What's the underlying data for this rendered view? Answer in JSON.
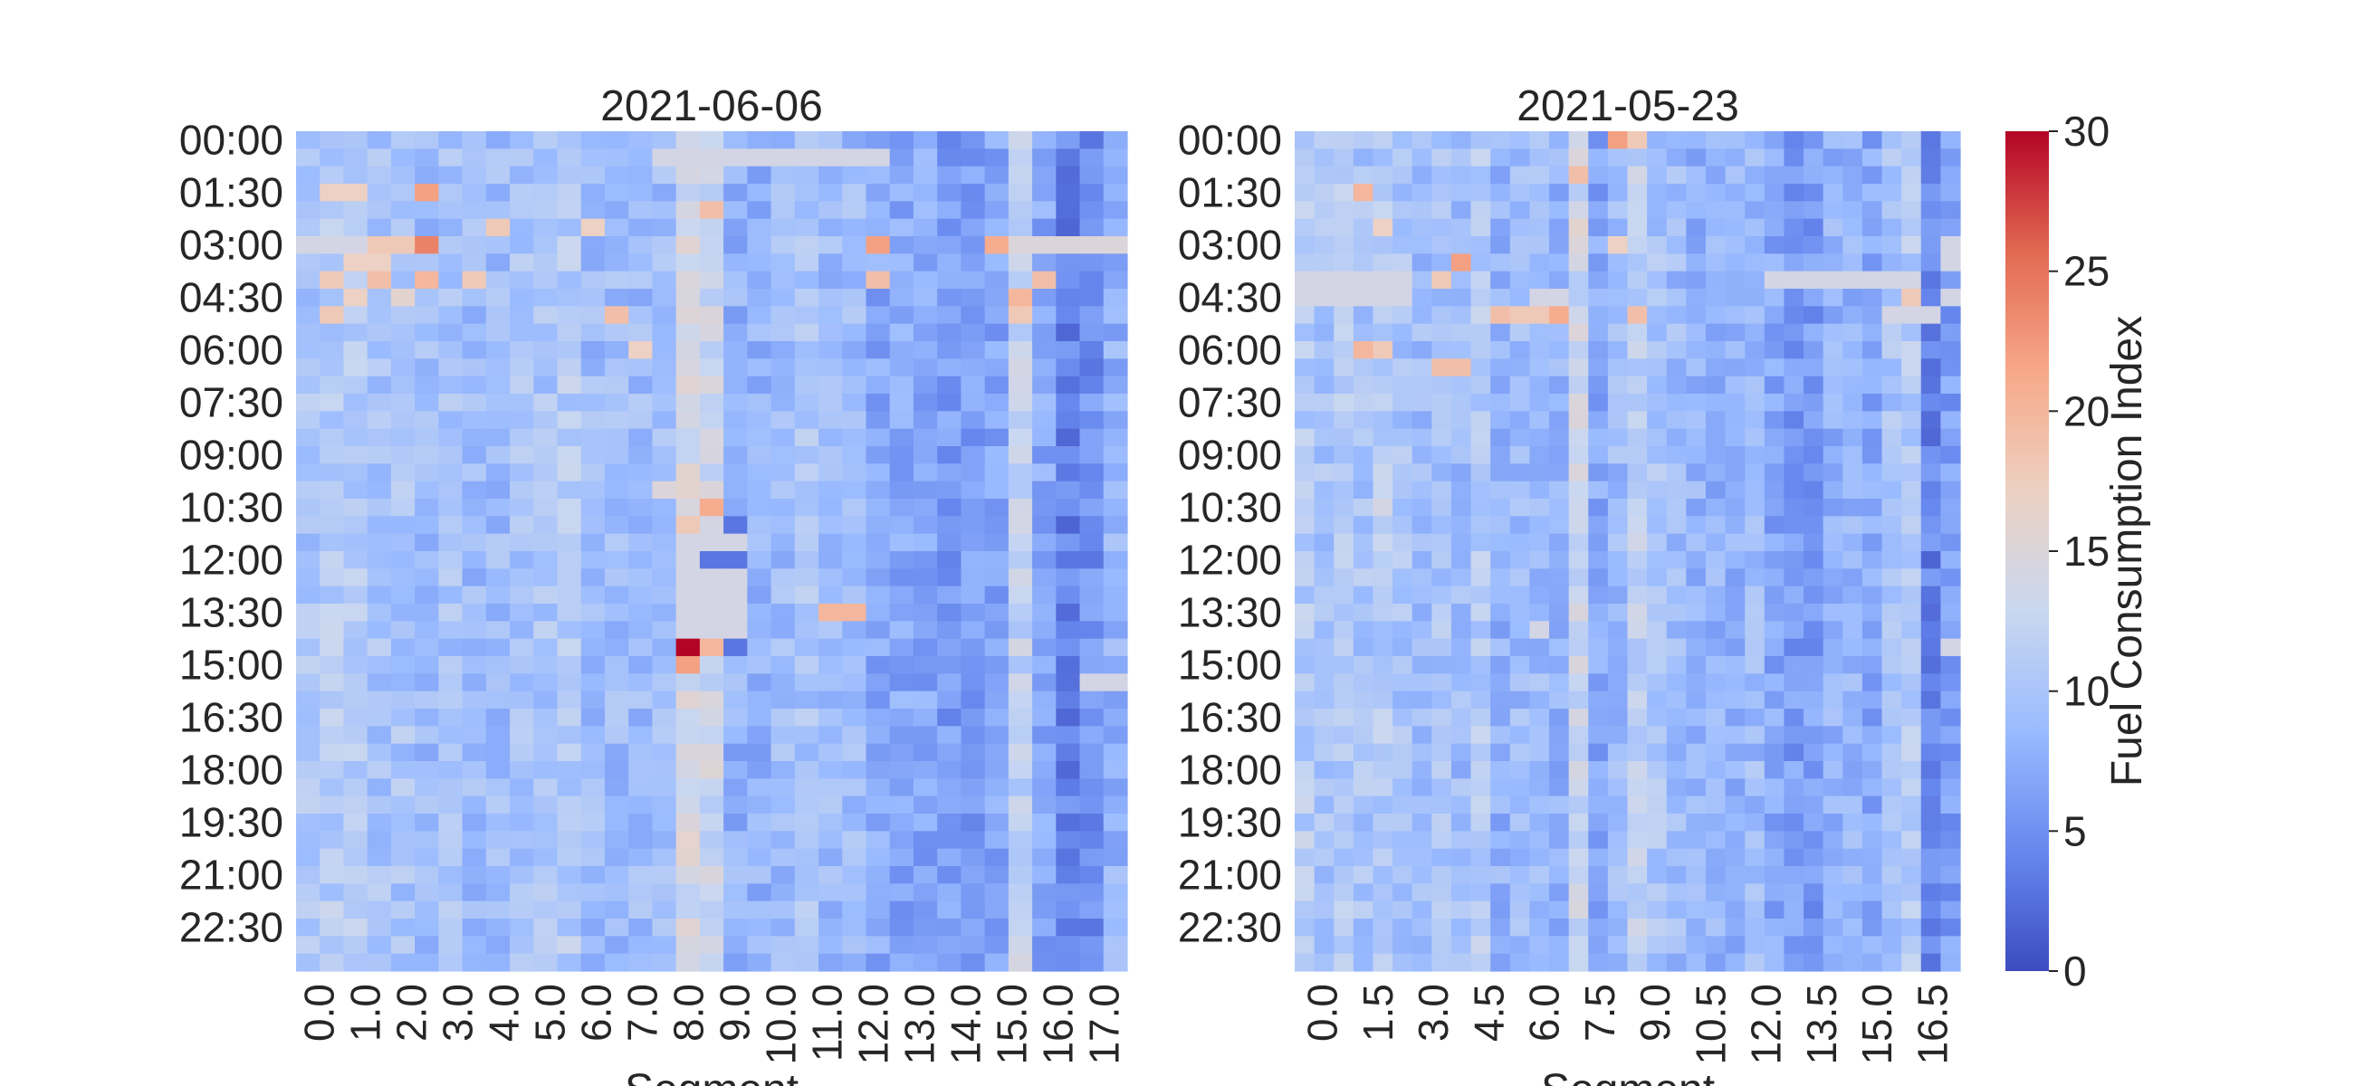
{
  "figure": {
    "colorbar_label": "Fuel Consumption Index",
    "colorbar_ticks": [
      "0",
      "5",
      "10",
      "15",
      "20",
      "25",
      "30"
    ],
    "colormap": [
      "#3b4cc0",
      "#6788ee",
      "#9abbff",
      "#c9d7f0",
      "#edd1c2",
      "#f7a889",
      "#e26952",
      "#b40426"
    ]
  },
  "chart_data": [
    {
      "type": "heatmap",
      "title": "2021-06-06",
      "xlabel": "Segment",
      "ylabel": "",
      "value_range": [
        0,
        30
      ],
      "y_tick_labels": [
        "00:00",
        "01:30",
        "03:00",
        "04:30",
        "06:00",
        "07:30",
        "09:00",
        "10:30",
        "12:00",
        "13:30",
        "15:00",
        "16:30",
        "18:00",
        "19:30",
        "21:00",
        "22:30"
      ],
      "x_tick_labels": [
        "0.0",
        "1.0",
        "2.0",
        "3.0",
        "4.0",
        "5.0",
        "6.0",
        "7.0",
        "8.0",
        "9.0",
        "10.0",
        "11.0",
        "12.0",
        "13.0",
        "14.0",
        "15.0",
        "16.0",
        "17.0"
      ],
      "segment_count": 35,
      "time_bin_count": 48,
      "segment_profile": [
        10,
        11,
        11,
        10,
        10,
        9,
        10,
        9,
        9,
        10,
        10,
        11,
        9,
        9,
        9,
        9,
        14,
        13,
        8,
        8,
        9,
        10,
        9,
        9,
        7,
        7,
        7,
        6,
        6,
        7,
        12,
        7,
        4,
        5,
        8
      ],
      "highlight_cells": [
        {
          "row": 1,
          "col": 15,
          "value": 14
        },
        {
          "row": 1,
          "col": 16,
          "value": 14
        },
        {
          "row": 1,
          "col": 17,
          "value": 14
        },
        {
          "row": 1,
          "col": 18,
          "value": 14
        },
        {
          "row": 1,
          "col": 19,
          "value": 14
        },
        {
          "row": 1,
          "col": 20,
          "value": 14
        },
        {
          "row": 1,
          "col": 21,
          "value": 14
        },
        {
          "row": 1,
          "col": 22,
          "value": 14
        },
        {
          "row": 1,
          "col": 23,
          "value": 14
        },
        {
          "row": 1,
          "col": 24,
          "value": 14
        },
        {
          "row": 3,
          "col": 5,
          "value": 22
        },
        {
          "row": 3,
          "col": 1,
          "value": 17
        },
        {
          "row": 3,
          "col": 2,
          "value": 17
        },
        {
          "row": 4,
          "col": 17,
          "value": 19
        },
        {
          "row": 5,
          "col": 8,
          "value": 18
        },
        {
          "row": 5,
          "col": 12,
          "value": 17
        },
        {
          "row": 6,
          "col": 0,
          "value": 14
        },
        {
          "row": 6,
          "col": 1,
          "value": 14
        },
        {
          "row": 6,
          "col": 2,
          "value": 14
        },
        {
          "row": 6,
          "col": 3,
          "value": 18
        },
        {
          "row": 6,
          "col": 4,
          "value": 18
        },
        {
          "row": 6,
          "col": 5,
          "value": 24
        },
        {
          "row": 6,
          "col": 24,
          "value": 22
        },
        {
          "row": 6,
          "col": 29,
          "value": 21
        },
        {
          "row": 6,
          "col": 30,
          "value": 15
        },
        {
          "row": 6,
          "col": 31,
          "value": 15
        },
        {
          "row": 6,
          "col": 32,
          "value": 15
        },
        {
          "row": 6,
          "col": 33,
          "value": 15
        },
        {
          "row": 6,
          "col": 34,
          "value": 15
        },
        {
          "row": 7,
          "col": 2,
          "value": 17
        },
        {
          "row": 7,
          "col": 3,
          "value": 17
        },
        {
          "row": 8,
          "col": 1,
          "value": 18
        },
        {
          "row": 8,
          "col": 3,
          "value": 19
        },
        {
          "row": 8,
          "col": 5,
          "value": 20
        },
        {
          "row": 8,
          "col": 7,
          "value": 18
        },
        {
          "row": 8,
          "col": 24,
          "value": 19
        },
        {
          "row": 8,
          "col": 31,
          "value": 19
        },
        {
          "row": 9,
          "col": 2,
          "value": 17
        },
        {
          "row": 9,
          "col": 4,
          "value": 16
        },
        {
          "row": 9,
          "col": 30,
          "value": 20
        },
        {
          "row": 10,
          "col": 1,
          "value": 18
        },
        {
          "row": 10,
          "col": 13,
          "value": 19
        },
        {
          "row": 10,
          "col": 30,
          "value": 18
        },
        {
          "row": 12,
          "col": 14,
          "value": 17
        },
        {
          "row": 20,
          "col": 15,
          "value": 15
        },
        {
          "row": 20,
          "col": 16,
          "value": 16
        },
        {
          "row": 21,
          "col": 17,
          "value": 21
        },
        {
          "row": 22,
          "col": 16,
          "value": 18
        },
        {
          "row": 22,
          "col": 18,
          "value": 3
        },
        {
          "row": 23,
          "col": 16,
          "value": 14
        },
        {
          "row": 23,
          "col": 17,
          "value": 14
        },
        {
          "row": 23,
          "col": 18,
          "value": 14
        },
        {
          "row": 24,
          "col": 16,
          "value": 14
        },
        {
          "row": 24,
          "col": 17,
          "value": 3
        },
        {
          "row": 24,
          "col": 18,
          "value": 3
        },
        {
          "row": 25,
          "col": 16,
          "value": 14
        },
        {
          "row": 25,
          "col": 17,
          "value": 14
        },
        {
          "row": 25,
          "col": 18,
          "value": 14
        },
        {
          "row": 26,
          "col": 16,
          "value": 14
        },
        {
          "row": 26,
          "col": 17,
          "value": 14
        },
        {
          "row": 26,
          "col": 18,
          "value": 14
        },
        {
          "row": 27,
          "col": 16,
          "value": 14
        },
        {
          "row": 27,
          "col": 17,
          "value": 14
        },
        {
          "row": 27,
          "col": 18,
          "value": 14
        },
        {
          "row": 28,
          "col": 16,
          "value": 14
        },
        {
          "row": 28,
          "col": 17,
          "value": 14
        },
        {
          "row": 28,
          "col": 18,
          "value": 14
        },
        {
          "row": 27,
          "col": 22,
          "value": 20
        },
        {
          "row": 27,
          "col": 23,
          "value": 20
        },
        {
          "row": 29,
          "col": 16,
          "value": 30
        },
        {
          "row": 29,
          "col": 17,
          "value": 20
        },
        {
          "row": 29,
          "col": 18,
          "value": 3
        },
        {
          "row": 30,
          "col": 16,
          "value": 22
        },
        {
          "row": 31,
          "col": 33,
          "value": 14
        },
        {
          "row": 31,
          "col": 34,
          "value": 14
        }
      ]
    },
    {
      "type": "heatmap",
      "title": "2021-05-23",
      "xlabel": "Segment",
      "ylabel": "",
      "value_range": [
        0,
        30
      ],
      "y_tick_labels": [
        "00:00",
        "01:30",
        "03:00",
        "04:30",
        "06:00",
        "07:30",
        "09:00",
        "10:30",
        "12:00",
        "13:30",
        "15:00",
        "16:30",
        "18:00",
        "19:30",
        "21:00",
        "22:30"
      ],
      "x_tick_labels": [
        "0.0",
        "1.5",
        "3.0",
        "4.5",
        "6.0",
        "7.5",
        "9.0",
        "10.5",
        "12.0",
        "13.5",
        "15.0",
        "16.5"
      ],
      "segment_count": 34,
      "time_bin_count": 48,
      "segment_profile": [
        11,
        10,
        11,
        10,
        11,
        10,
        9,
        10,
        9,
        11,
        8,
        9,
        9,
        8,
        13,
        7,
        9,
        12,
        10,
        9,
        8,
        8,
        8,
        9,
        7,
        6,
        6,
        8,
        8,
        7,
        10,
        11,
        4,
        6
      ],
      "highlight_cells": [
        {
          "row": 0,
          "col": 16,
          "value": 22
        },
        {
          "row": 0,
          "col": 17,
          "value": 18
        },
        {
          "row": 2,
          "col": 14,
          "value": 19
        },
        {
          "row": 3,
          "col": 3,
          "value": 20
        },
        {
          "row": 5,
          "col": 4,
          "value": 17
        },
        {
          "row": 5,
          "col": 14,
          "value": 16
        },
        {
          "row": 6,
          "col": 16,
          "value": 17
        },
        {
          "row": 7,
          "col": 8,
          "value": 22
        },
        {
          "row": 6,
          "col": 33,
          "value": 14
        },
        {
          "row": 7,
          "col": 33,
          "value": 14
        },
        {
          "row": 8,
          "col": 0,
          "value": 14
        },
        {
          "row": 8,
          "col": 1,
          "value": 14
        },
        {
          "row": 8,
          "col": 2,
          "value": 14
        },
        {
          "row": 8,
          "col": 3,
          "value": 14
        },
        {
          "row": 8,
          "col": 4,
          "value": 14
        },
        {
          "row": 8,
          "col": 5,
          "value": 14
        },
        {
          "row": 8,
          "col": 7,
          "value": 18
        },
        {
          "row": 8,
          "col": 24,
          "value": 14
        },
        {
          "row": 8,
          "col": 25,
          "value": 14
        },
        {
          "row": 8,
          "col": 26,
          "value": 14
        },
        {
          "row": 8,
          "col": 27,
          "value": 14
        },
        {
          "row": 8,
          "col": 28,
          "value": 14
        },
        {
          "row": 8,
          "col": 29,
          "value": 14
        },
        {
          "row": 8,
          "col": 30,
          "value": 14
        },
        {
          "row": 8,
          "col": 31,
          "value": 14
        },
        {
          "row": 9,
          "col": 0,
          "value": 14
        },
        {
          "row": 9,
          "col": 1,
          "value": 14
        },
        {
          "row": 9,
          "col": 2,
          "value": 14
        },
        {
          "row": 9,
          "col": 3,
          "value": 14
        },
        {
          "row": 9,
          "col": 4,
          "value": 14
        },
        {
          "row": 9,
          "col": 5,
          "value": 14
        },
        {
          "row": 9,
          "col": 12,
          "value": 14
        },
        {
          "row": 9,
          "col": 13,
          "value": 14
        },
        {
          "row": 9,
          "col": 31,
          "value": 18
        },
        {
          "row": 9,
          "col": 33,
          "value": 14
        },
        {
          "row": 10,
          "col": 10,
          "value": 19
        },
        {
          "row": 10,
          "col": 11,
          "value": 18
        },
        {
          "row": 10,
          "col": 12,
          "value": 18
        },
        {
          "row": 10,
          "col": 13,
          "value": 21
        },
        {
          "row": 10,
          "col": 17,
          "value": 19
        },
        {
          "row": 10,
          "col": 30,
          "value": 14
        },
        {
          "row": 10,
          "col": 31,
          "value": 14
        },
        {
          "row": 10,
          "col": 32,
          "value": 14
        },
        {
          "row": 12,
          "col": 3,
          "value": 20
        },
        {
          "row": 12,
          "col": 4,
          "value": 18
        },
        {
          "row": 13,
          "col": 7,
          "value": 19
        },
        {
          "row": 13,
          "col": 8,
          "value": 19
        },
        {
          "row": 21,
          "col": 4,
          "value": 14
        },
        {
          "row": 28,
          "col": 12,
          "value": 14
        },
        {
          "row": 29,
          "col": 33,
          "value": 14
        }
      ]
    }
  ]
}
